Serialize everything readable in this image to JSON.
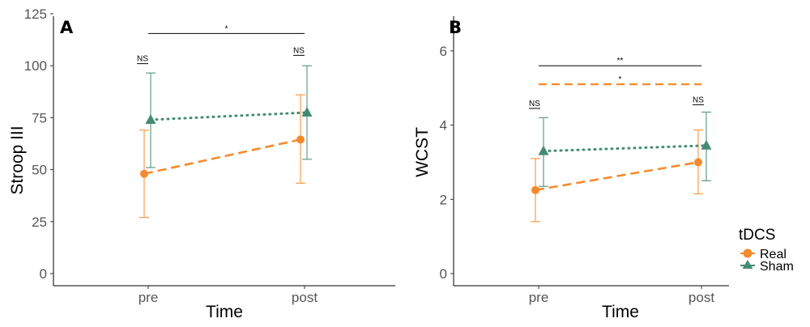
{
  "legend": {
    "title": "tDCS",
    "items": [
      {
        "label": "Real",
        "color": "#F58A2D",
        "shape": "circle"
      },
      {
        "label": "Sham",
        "color": "#458B74",
        "shape": "triangle"
      }
    ]
  },
  "chart_data": [
    {
      "type": "line",
      "panel": "A",
      "categories": [
        "pre",
        "post"
      ],
      "xlabel": "Time",
      "ylabel": "Stroop III",
      "ylim": [
        0,
        125
      ],
      "yticks": [
        0,
        25,
        50,
        75,
        100,
        125
      ],
      "series": [
        {
          "name": "Real",
          "color": "#F58A2D",
          "marker": "circle",
          "line": "dashed",
          "values": [
            48,
            64.5
          ],
          "err_low": [
            27,
            43.5
          ],
          "err_high": [
            69,
            86
          ]
        },
        {
          "name": "Sham",
          "color": "#458B74",
          "marker": "triangle",
          "line": "dotted",
          "values": [
            74,
            77.5
          ],
          "err_low": [
            51,
            55
          ],
          "err_high": [
            96.5,
            100
          ]
        }
      ],
      "annotations": [
        {
          "text": "*",
          "from": "pre",
          "to": "post",
          "y": 115.5,
          "color": "#000000",
          "line": "solid"
        },
        {
          "text": "NS",
          "at": "pre",
          "y": 101,
          "color": "#000000"
        },
        {
          "text": "NS",
          "at": "post",
          "y": 105,
          "color": "#000000"
        }
      ]
    },
    {
      "type": "line",
      "panel": "B",
      "categories": [
        "pre",
        "post"
      ],
      "xlabel": "Time",
      "ylabel": "WCST",
      "ylim": [
        0,
        7
      ],
      "yticks": [
        0,
        2,
        4,
        6
      ],
      "series": [
        {
          "name": "Real",
          "color": "#F58A2D",
          "marker": "circle",
          "line": "dashed",
          "values": [
            2.25,
            3.0
          ],
          "err_low": [
            1.4,
            2.15
          ],
          "err_high": [
            3.1,
            3.87
          ]
        },
        {
          "name": "Sham",
          "color": "#458B74",
          "marker": "triangle",
          "line": "dotted",
          "values": [
            3.3,
            3.45
          ],
          "err_low": [
            2.35,
            2.5
          ],
          "err_high": [
            4.2,
            4.35
          ]
        }
      ],
      "annotations": [
        {
          "text": "**",
          "from": "pre",
          "to": "post",
          "y": 5.6,
          "color": "#000000",
          "line": "solid"
        },
        {
          "text": "*",
          "from": "pre",
          "to": "post",
          "y": 5.1,
          "color": "#F58A2D",
          "line": "dashed"
        },
        {
          "text": "NS",
          "at": "pre",
          "y": 4.45,
          "color": "#000000"
        },
        {
          "text": "NS",
          "at": "post",
          "y": 4.55,
          "color": "#000000"
        }
      ]
    }
  ]
}
